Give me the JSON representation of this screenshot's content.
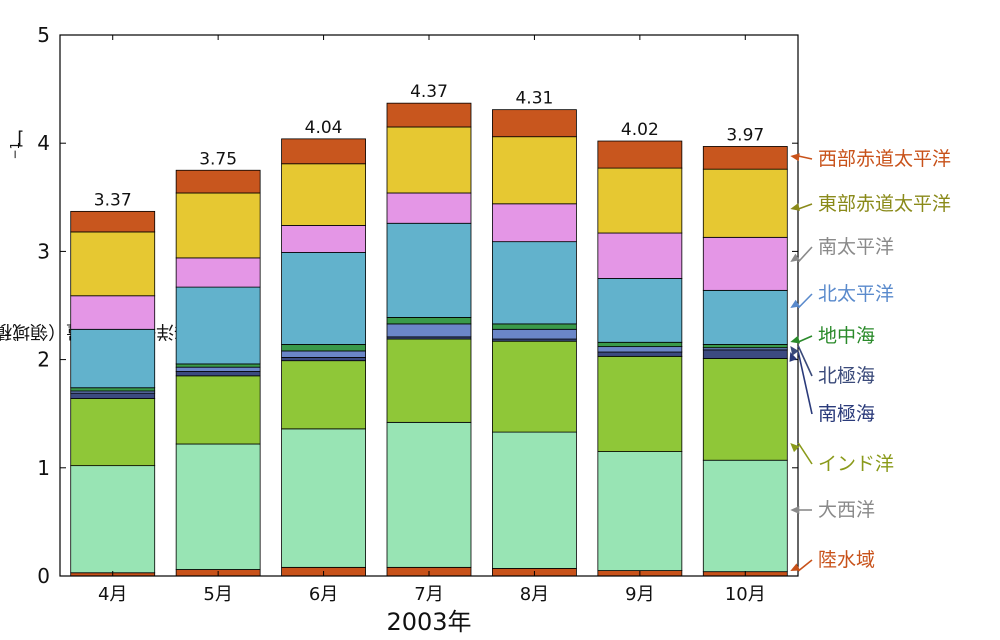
{
  "chart_data": {
    "type": "bar",
    "stacked": true,
    "ylabel": "海洋一次生産量（領域積算）[Pg C month",
    "ylabel_superscript": "−1",
    "ylabel_end": "]",
    "xlabel": "2003年",
    "ylim": [
      0,
      5
    ],
    "yticks": [
      "0",
      "1",
      "2",
      "3",
      "4",
      "5"
    ],
    "categories": [
      "4月",
      "5月",
      "6月",
      "7月",
      "8月",
      "9月",
      "10月"
    ],
    "totals": [
      "3.37",
      "3.75",
      "4.04",
      "4.37",
      "4.31",
      "4.02",
      "3.97"
    ],
    "series": [
      {
        "name": "陸水域",
        "color": "#c8521a",
        "label_color": "#c8521a",
        "values": [
          0.03,
          0.06,
          0.08,
          0.08,
          0.07,
          0.05,
          0.04
        ]
      },
      {
        "name": "大西洋",
        "color": "#98e4b4",
        "label_color": "#8a8a8a",
        "values": [
          0.99,
          1.16,
          1.28,
          1.34,
          1.26,
          1.1,
          1.03
        ]
      },
      {
        "name": "インド洋",
        "color": "#8fc738",
        "label_color": "#8a9a1a",
        "values": [
          0.62,
          0.63,
          0.63,
          0.77,
          0.84,
          0.88,
          0.94
        ]
      },
      {
        "name": "南極海",
        "color": "#3c4a80",
        "label_color": "#2a3a7a",
        "values": [
          0.05,
          0.04,
          0.03,
          0.02,
          0.02,
          0.04,
          0.08
        ]
      },
      {
        "name": "北極海",
        "color": "#6b86c8",
        "label_color": "#3a4a7a",
        "values": [
          0.02,
          0.04,
          0.06,
          0.12,
          0.09,
          0.05,
          0.02
        ]
      },
      {
        "name": "地中海",
        "color": "#3a9a4a",
        "label_color": "#2a8a2a",
        "values": [
          0.03,
          0.03,
          0.06,
          0.06,
          0.05,
          0.04,
          0.03
        ]
      },
      {
        "name": "北太平洋",
        "color": "#62b2cc",
        "label_color": "#5a8acc",
        "values": [
          0.54,
          0.71,
          0.85,
          0.87,
          0.76,
          0.59,
          0.5
        ]
      },
      {
        "name": "南太平洋",
        "color": "#e496e6",
        "label_color": "#8a8a8a",
        "values": [
          0.31,
          0.27,
          0.25,
          0.28,
          0.35,
          0.42,
          0.49
        ]
      },
      {
        "name": "東部赤道太平洋",
        "color": "#e6c832",
        "label_color": "#8a8a1a",
        "values": [
          0.59,
          0.6,
          0.57,
          0.61,
          0.62,
          0.6,
          0.63
        ]
      },
      {
        "name": "西部赤道太平洋",
        "color": "#c8561e",
        "label_color": "#c8521a",
        "values": [
          0.19,
          0.21,
          0.23,
          0.22,
          0.25,
          0.25,
          0.21
        ]
      }
    ],
    "legend_placement": "right",
    "grid": false
  }
}
